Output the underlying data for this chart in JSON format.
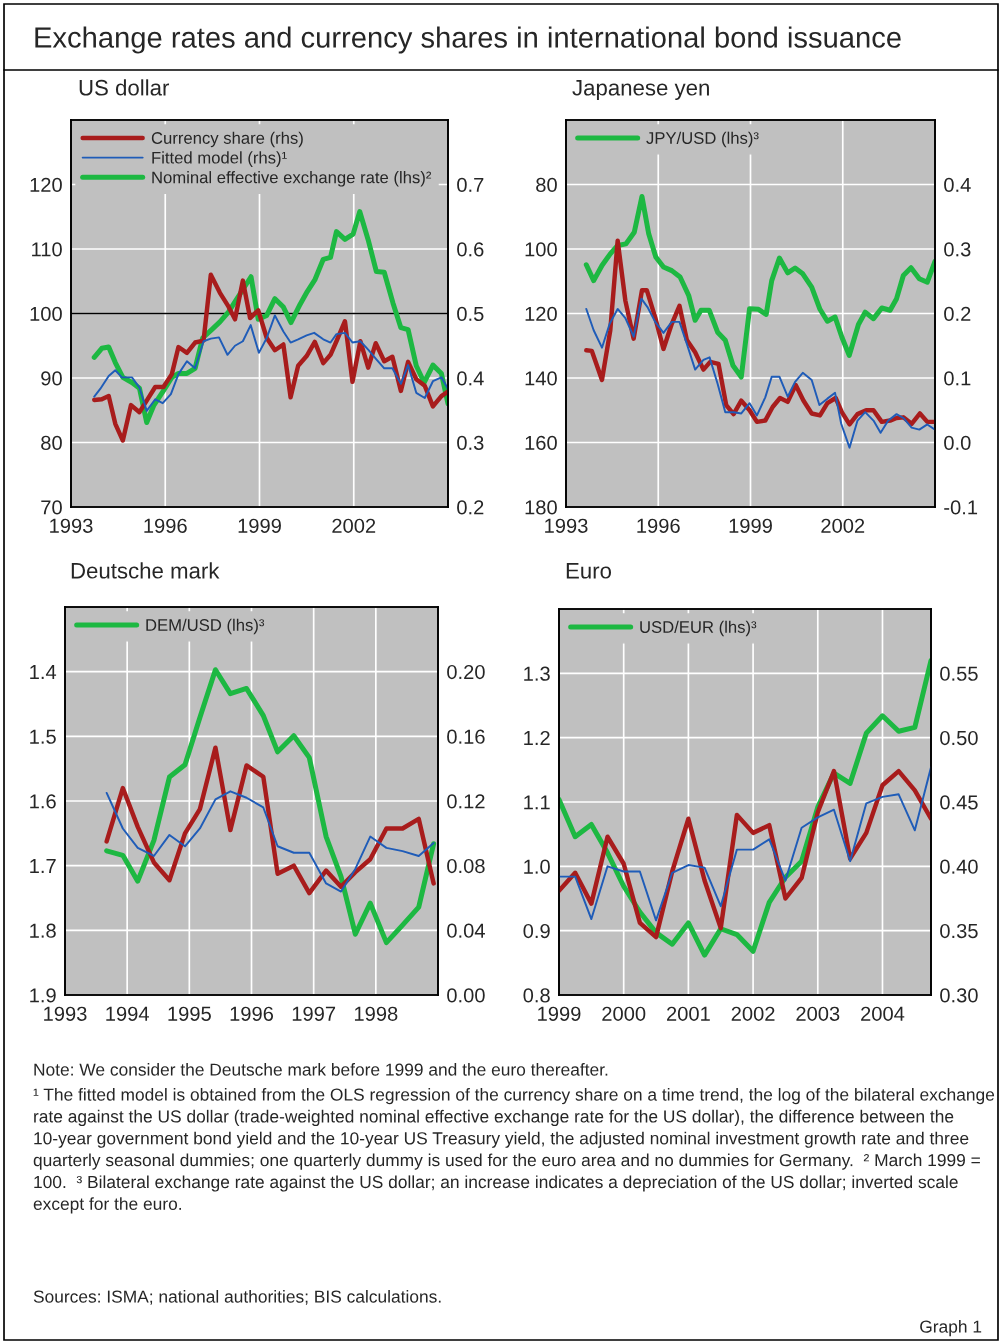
{
  "chart_data": [
    {
      "type": "line",
      "title": "Exchange rates and currency shares in international bond issuance",
      "subtitle": "US dollar",
      "xlim": [
        1993,
        2005
      ],
      "xticks": [
        1993,
        1996,
        1999,
        2002
      ],
      "ylim": [
        70,
        130
      ],
      "yticks": [
        70,
        80,
        90,
        100,
        110,
        120
      ],
      "y2lim": [
        0.2,
        0.8
      ],
      "y2ticks": [
        0.2,
        0.3,
        0.4,
        0.5,
        0.6,
        0.7
      ],
      "grid": true,
      "legend": "top left",
      "ref_lines": [
        {
          "axis": "y",
          "value": 100,
          "color": "#000000"
        }
      ],
      "series": [
        {
          "name": "Currency share (rhs)",
          "color": "#a81c1c",
          "axis": "y2",
          "x": [
            1993.74,
            1993.98,
            1994.2,
            1994.41,
            1994.65,
            1994.91,
            1995.18,
            1995.41,
            1995.68,
            1995.94,
            1996.21,
            1996.42,
            1996.69,
            1996.95,
            1997.22,
            1997.45,
            1997.74,
            1998.01,
            1998.22,
            1998.47,
            1998.7,
            1998.96,
            1999.23,
            1999.49,
            1999.76,
            1999.99,
            2000.23,
            2000.5,
            2000.76,
            2001.03,
            2001.26,
            2001.45,
            2001.72,
            2001.96,
            2002.21,
            2002.46,
            2002.7,
            2002.97,
            2003.23,
            2003.5,
            2003.73,
            2003.99,
            2004.26,
            2004.52,
            2004.79,
            2005.0
          ],
          "values": [
            0.366,
            0.367,
            0.372,
            0.329,
            0.303,
            0.358,
            0.347,
            0.365,
            0.386,
            0.386,
            0.406,
            0.448,
            0.439,
            0.455,
            0.458,
            0.56,
            0.532,
            0.511,
            0.491,
            0.551,
            0.493,
            0.505,
            0.462,
            0.443,
            0.452,
            0.37,
            0.419,
            0.434,
            0.456,
            0.423,
            0.436,
            0.457,
            0.488,
            0.394,
            0.457,
            0.416,
            0.454,
            0.426,
            0.433,
            0.38,
            0.425,
            0.398,
            0.388,
            0.356,
            0.372,
            0.379
          ]
        },
        {
          "name": "Fitted model (rhs)¹",
          "color": "#1f5cb8",
          "axis": "y2",
          "x": [
            1993.74,
            1993.93,
            1994.2,
            1994.41,
            1994.62,
            1994.94,
            1995.18,
            1995.41,
            1995.68,
            1995.92,
            1996.18,
            1996.42,
            1996.69,
            1996.95,
            1997.22,
            1997.45,
            1997.71,
            1997.98,
            1998.22,
            1998.47,
            1998.72,
            1998.98,
            1999.23,
            1999.49,
            1999.76,
            1999.99,
            2000.23,
            2000.5,
            2000.74,
            2001.03,
            2001.26,
            2001.45,
            2001.72,
            2001.96,
            2002.21,
            2002.46,
            2002.72,
            2002.97,
            2003.23,
            2003.5,
            2003.73,
            2003.99,
            2004.26,
            2004.52,
            2004.79,
            2005.0
          ],
          "values": [
            0.371,
            0.383,
            0.403,
            0.412,
            0.401,
            0.401,
            0.385,
            0.349,
            0.367,
            0.361,
            0.375,
            0.406,
            0.426,
            0.415,
            0.457,
            0.461,
            0.463,
            0.436,
            0.45,
            0.457,
            0.482,
            0.439,
            0.462,
            0.497,
            0.472,
            0.455,
            0.46,
            0.466,
            0.47,
            0.46,
            0.455,
            0.468,
            0.47,
            0.455,
            0.457,
            0.444,
            0.429,
            0.415,
            0.415,
            0.391,
            0.42,
            0.377,
            0.369,
            0.395,
            0.401,
            0.383
          ]
        },
        {
          "name": "Nominal effective exchange rate (lhs)²",
          "color": "#1db842",
          "axis": "y",
          "x": [
            1993.74,
            1993.98,
            1994.2,
            1994.41,
            1994.65,
            1994.94,
            1995.18,
            1995.41,
            1995.63,
            1995.94,
            1996.21,
            1996.42,
            1996.69,
            1996.95,
            1997.19,
            1997.48,
            1997.74,
            1998.01,
            1998.27,
            1998.73,
            1998.96,
            1999.23,
            1999.49,
            1999.76,
            2000.0,
            2000.29,
            2000.52,
            2000.76,
            2001.03,
            2001.26,
            2001.45,
            2001.72,
            2001.98,
            2002.19,
            2002.46,
            2002.72,
            2002.97,
            2003.25,
            2003.5,
            2003.73,
            2003.99,
            2004.24,
            2004.52,
            2004.79,
            2005.0
          ],
          "values": [
            93.2,
            94.6,
            94.8,
            92.4,
            90.1,
            89.3,
            88.4,
            83.1,
            85.7,
            88.0,
            90.1,
            90.7,
            90.7,
            91.5,
            96.2,
            97.5,
            98.7,
            100.2,
            102.2,
            105.7,
            99.1,
            99.7,
            102.3,
            101.0,
            98.6,
            101.4,
            103.4,
            105.2,
            108.4,
            108.7,
            112.7,
            111.5,
            112.3,
            115.8,
            111.4,
            106.5,
            106.4,
            101.6,
            97.8,
            97.5,
            91.9,
            89.3,
            92.0,
            90.7,
            86.0
          ]
        }
      ]
    },
    {
      "type": "line",
      "title": "Japanese yen",
      "xlim": [
        1993,
        2005
      ],
      "xticks": [
        1993,
        1996,
        1999,
        2002
      ],
      "ylim": [
        180,
        60
      ],
      "yticks": [
        80,
        100,
        120,
        140,
        160,
        180
      ],
      "y2lim": [
        -0.1,
        0.5
      ],
      "y2ticks": [
        -0.1,
        {
          "value": 0,
          "label": "0.0"
        },
        0.1,
        0.2,
        0.3,
        0.4
      ],
      "grid": true,
      "legend": "top left",
      "series": [
        {
          "color": "#a81c1c",
          "axis": "y2",
          "x": [
            1993.66,
            1993.84,
            1994.17,
            1994.44,
            1994.68,
            1994.93,
            1995.2,
            1995.47,
            1995.63,
            1995.9,
            1996.17,
            1996.44,
            1996.69,
            1996.93,
            1997.2,
            1997.47,
            1997.69,
            1997.96,
            1998.21,
            1998.45,
            1998.7,
            1998.97,
            1999.21,
            1999.48,
            1999.72,
            1999.96,
            2000.21,
            2000.47,
            2000.72,
            2000.99,
            2001.26,
            2001.5,
            2001.77,
            2001.97,
            2002.22,
            2002.48,
            2002.76,
            2003.0,
            2003.27,
            2003.54,
            2003.75,
            2003.97,
            2004.24,
            2004.51,
            2004.75,
            2005.0
          ],
          "values": [
            0.143,
            0.142,
            0.097,
            0.174,
            0.313,
            0.22,
            0.161,
            0.236,
            0.236,
            0.194,
            0.145,
            0.184,
            0.212,
            0.159,
            0.14,
            0.113,
            0.125,
            0.122,
            0.058,
            0.044,
            0.065,
            0.05,
            0.032,
            0.034,
            0.055,
            0.069,
            0.063,
            0.089,
            0.065,
            0.045,
            0.042,
            0.061,
            0.069,
            0.047,
            0.028,
            0.044,
            0.05,
            0.05,
            0.032,
            0.034,
            0.038,
            0.039,
            0.029,
            0.045,
            0.032,
            0.032
          ]
        },
        {
          "color": "#1f5cb8",
          "axis": "y2",
          "x": [
            1993.66,
            1993.9,
            1994.17,
            1994.42,
            1994.68,
            1994.93,
            1995.2,
            1995.45,
            1995.65,
            1995.9,
            1996.17,
            1996.44,
            1996.69,
            1996.93,
            1997.2,
            1997.47,
            1997.67,
            1997.93,
            1998.18,
            1998.45,
            1998.7,
            1998.97,
            1999.21,
            1999.48,
            1999.69,
            1999.94,
            2000.21,
            2000.45,
            2000.7,
            2000.99,
            2001.24,
            2001.5,
            2001.75,
            2001.95,
            2002.22,
            2002.48,
            2002.73,
            2003.0,
            2003.23,
            2003.48,
            2003.75,
            2003.97,
            2004.24,
            2004.49,
            2004.75,
            2005.0
          ],
          "values": [
            0.207,
            0.174,
            0.147,
            0.184,
            0.207,
            0.193,
            0.164,
            0.223,
            0.21,
            0.187,
            0.17,
            0.187,
            0.187,
            0.153,
            0.113,
            0.128,
            0.132,
            0.091,
            0.047,
            0.047,
            0.045,
            0.061,
            0.042,
            0.07,
            0.102,
            0.102,
            0.071,
            0.094,
            0.108,
            0.097,
            0.058,
            0.068,
            0.077,
            0.029,
            -0.008,
            0.034,
            0.047,
            0.034,
            0.015,
            0.034,
            0.044,
            0.038,
            0.023,
            0.02,
            0.028,
            0.02
          ]
        },
        {
          "name": "JPY/USD (lhs)³",
          "color": "#1db842",
          "axis": "y",
          "x": [
            1993.66,
            1993.9,
            1994.17,
            1994.44,
            1994.68,
            1994.95,
            1995.22,
            1995.47,
            1995.69,
            1995.92,
            1996.17,
            1996.44,
            1996.71,
            1996.99,
            1997.2,
            1997.39,
            1997.66,
            1997.93,
            1998.18,
            1998.43,
            1998.7,
            1998.97,
            1999.26,
            1999.51,
            1999.69,
            1999.94,
            2000.21,
            2000.45,
            2000.7,
            2000.99,
            2001.26,
            2001.5,
            2001.75,
            2001.97,
            2002.21,
            2002.51,
            2002.73,
            2003.0,
            2003.27,
            2003.54,
            2003.75,
            2003.97,
            2004.22,
            2004.49,
            2004.75,
            2005.0
          ],
          "values": [
            104.9,
            109.8,
            105.1,
            101.5,
            98.9,
            98.4,
            94.8,
            83.7,
            95.3,
            102.5,
            105.6,
            106.7,
            108.7,
            114.4,
            122.1,
            119.0,
            119.0,
            125.8,
            128.3,
            136.1,
            139.7,
            118.5,
            118.7,
            120.3,
            109.8,
            102.8,
            107.4,
            105.9,
            107.7,
            111.8,
            118.7,
            122.4,
            121.1,
            127.3,
            133.0,
            123.4,
            119.6,
            121.6,
            118.3,
            119.0,
            115.4,
            108.2,
            105.8,
            109.2,
            110.3,
            103.8
          ]
        }
      ]
    },
    {
      "type": "line",
      "title": "Deutsche mark",
      "xlim": [
        1993,
        1999
      ],
      "xticks": [
        1993,
        1994,
        1995,
        1996,
        1997,
        1998
      ],
      "ylim": [
        1.9,
        1.3
      ],
      "yticks": [
        1.4,
        1.5,
        1.6,
        1.7,
        1.8,
        1.9
      ],
      "y2lim": [
        0,
        0.24
      ],
      "y2ticks": [
        {
          "value": 0,
          "label": "0.00"
        },
        0.04,
        0.08,
        0.12,
        0.16,
        {
          "value": 0.2,
          "label": "0.20"
        }
      ],
      "grid": true,
      "legend": "top left",
      "x": [
        1993.67,
        1993.93,
        1994.17,
        1994.43,
        1994.68,
        1994.93,
        1995.17,
        1995.42,
        1995.66,
        1995.92,
        1996.19,
        1996.42,
        1996.68,
        1996.93,
        1997.2,
        1997.44,
        1997.67,
        1997.91,
        1998.17,
        1998.43,
        1998.69,
        1998.93
      ],
      "series": [
        {
          "color": "#a81c1c",
          "axis": "y2",
          "values": [
            0.095,
            0.128,
            0.104,
            0.082,
            0.071,
            0.1,
            0.115,
            0.153,
            0.102,
            0.142,
            0.135,
            0.075,
            0.08,
            0.063,
            0.077,
            0.067,
            0.076,
            0.084,
            0.103,
            0.103,
            0.109,
            0.069
          ]
        },
        {
          "color": "#1f5cb8",
          "axis": "y2",
          "values": [
            0.125,
            0.103,
            0.091,
            0.086,
            0.099,
            0.092,
            0.103,
            0.121,
            0.126,
            0.122,
            0.116,
            0.092,
            0.088,
            0.088,
            0.069,
            0.064,
            0.078,
            0.098,
            0.091,
            0.089,
            0.086,
            0.094
          ]
        },
        {
          "name": "DEM/USD (lhs)³",
          "color": "#1db842",
          "axis": "y",
          "values": [
            1.677,
            1.684,
            1.724,
            1.661,
            1.563,
            1.544,
            1.471,
            1.397,
            1.434,
            1.426,
            1.468,
            1.524,
            1.499,
            1.533,
            1.655,
            1.717,
            1.806,
            1.758,
            1.819,
            1.792,
            1.764,
            1.666
          ]
        }
      ]
    },
    {
      "type": "line",
      "title": "Euro",
      "xlim": [
        1999,
        2004.75
      ],
      "xticks": [
        1999,
        2000,
        2001,
        2002,
        2003,
        2004
      ],
      "ylim": [
        0.8,
        1.4
      ],
      "yticks": [
        0.8,
        0.9,
        {
          "value": 1.0,
          "label": "1.0"
        },
        1.1,
        1.2,
        1.3
      ],
      "y2lim": [
        0.3,
        0.6
      ],
      "y2ticks": [
        {
          "value": 0.3,
          "label": "0.30"
        },
        0.35,
        {
          "value": 0.4,
          "label": "0.40"
        },
        0.45,
        {
          "value": 0.5,
          "label": "0.50"
        },
        0.55
      ],
      "grid": true,
      "legend": "top left",
      "x": [
        1999.0,
        1999.25,
        1999.5,
        1999.75,
        2000.0,
        2000.25,
        2000.5,
        2000.75,
        2001.0,
        2001.25,
        2001.5,
        2001.75,
        2002.0,
        2002.25,
        2002.5,
        2002.75,
        2003.0,
        2003.25,
        2003.5,
        2003.75,
        2004.0,
        2004.25,
        2004.5,
        2004.75
      ],
      "series": [
        {
          "color": "#a81c1c",
          "axis": "y2",
          "values": [
            0.381,
            0.395,
            0.371,
            0.423,
            0.402,
            0.356,
            0.345,
            0.396,
            0.437,
            0.389,
            0.352,
            0.44,
            0.426,
            0.432,
            0.375,
            0.391,
            0.442,
            0.474,
            0.406,
            0.426,
            0.463,
            0.474,
            0.459,
            0.437
          ]
        },
        {
          "color": "#1f5cb8",
          "axis": "y2",
          "values": [
            0.392,
            0.392,
            0.359,
            0.4,
            0.396,
            0.396,
            0.358,
            0.395,
            0.401,
            0.399,
            0.369,
            0.413,
            0.413,
            0.421,
            0.389,
            0.43,
            0.438,
            0.444,
            0.404,
            0.449,
            0.454,
            0.456,
            0.428,
            0.477
          ]
        },
        {
          "name": "USD/EUR (lhs)³",
          "color": "#1db842",
          "axis": "y",
          "values": [
            1.104,
            1.046,
            1.065,
            1.021,
            0.969,
            0.929,
            0.897,
            0.879,
            0.912,
            0.862,
            0.903,
            0.894,
            0.868,
            0.944,
            0.983,
            1.008,
            1.092,
            1.145,
            1.129,
            1.207,
            1.234,
            1.21,
            1.216,
            1.32
          ]
        }
      ],
      "annotations": [
        "Note: We consider the Deutsche mark before 1999 and the euro thereafter.",
        "¹ The fitted model is obtained from the OLS regression of the currency share on a time trend, the log of the bilateral exchange rate against the US dollar (trade-weighted nominal effective exchange rate for the US dollar), the difference between the 10-year government bond yield and the 10-year US Treasury yield, the adjusted nominal investment growth rate and three quarterly seasonal dummies; one quarterly dummy is used for the euro area and no dummies for Germany.  ² March 1999 = 100.  ³ Bilateral exchange rate against the US dollar; an increase indicates a depreciation of the US dollar; inverted scale except for the euro.",
        "Sources: ISMA; national authorities; BIS calculations.",
        "Graph 1"
      ]
    }
  ]
}
